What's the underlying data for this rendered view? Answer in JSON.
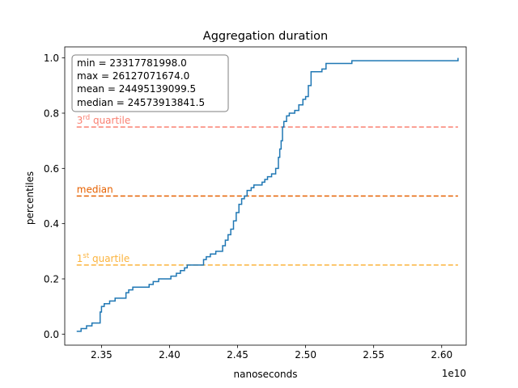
{
  "chart_data": {
    "type": "line",
    "title": "Aggregation duration",
    "xlabel": "nanoseconds",
    "ylabel": "percentiles",
    "x_offset_label": "1e10",
    "xlim": [
      23230000000,
      26180000000
    ],
    "ylim": [
      -0.04,
      1.04
    ],
    "xticks": [
      23500000000,
      24000000000,
      24500000000,
      25000000000,
      25500000000,
      26000000000
    ],
    "xtick_labels": [
      "2.35",
      "2.40",
      "2.45",
      "2.50",
      "2.55",
      "2.60"
    ],
    "yticks": [
      0.0,
      0.2,
      0.4,
      0.6,
      0.8,
      1.0
    ],
    "ytick_labels": [
      "0.0",
      "0.2",
      "0.4",
      "0.6",
      "0.8",
      "1.0"
    ],
    "grid": false,
    "series": [
      {
        "color": "#1f77b4",
        "style": "step",
        "points": [
          [
            23317781998,
            0.01
          ],
          [
            23350000000,
            0.01
          ],
          [
            23350000000,
            0.02
          ],
          [
            23390000000,
            0.02
          ],
          [
            23390000000,
            0.03
          ],
          [
            23430000000,
            0.03
          ],
          [
            23430000000,
            0.04
          ],
          [
            23490000000,
            0.04
          ],
          [
            23490000000,
            0.08
          ],
          [
            23500000000,
            0.08
          ],
          [
            23500000000,
            0.1
          ],
          [
            23520000000,
            0.1
          ],
          [
            23520000000,
            0.11
          ],
          [
            23560000000,
            0.11
          ],
          [
            23560000000,
            0.12
          ],
          [
            23600000000,
            0.12
          ],
          [
            23600000000,
            0.13
          ],
          [
            23680000000,
            0.13
          ],
          [
            23680000000,
            0.15
          ],
          [
            23700000000,
            0.15
          ],
          [
            23700000000,
            0.16
          ],
          [
            23730000000,
            0.16
          ],
          [
            23730000000,
            0.17
          ],
          [
            23850000000,
            0.17
          ],
          [
            23850000000,
            0.18
          ],
          [
            23880000000,
            0.18
          ],
          [
            23880000000,
            0.19
          ],
          [
            23920000000,
            0.19
          ],
          [
            23920000000,
            0.2
          ],
          [
            24010000000,
            0.2
          ],
          [
            24010000000,
            0.21
          ],
          [
            24050000000,
            0.21
          ],
          [
            24050000000,
            0.22
          ],
          [
            24080000000,
            0.22
          ],
          [
            24080000000,
            0.23
          ],
          [
            24110000000,
            0.23
          ],
          [
            24110000000,
            0.24
          ],
          [
            24130000000,
            0.24
          ],
          [
            24130000000,
            0.25
          ],
          [
            24250000000,
            0.25
          ],
          [
            24250000000,
            0.27
          ],
          [
            24270000000,
            0.27
          ],
          [
            24270000000,
            0.28
          ],
          [
            24300000000,
            0.28
          ],
          [
            24300000000,
            0.29
          ],
          [
            24340000000,
            0.29
          ],
          [
            24340000000,
            0.3
          ],
          [
            24390000000,
            0.3
          ],
          [
            24390000000,
            0.32
          ],
          [
            24410000000,
            0.32
          ],
          [
            24410000000,
            0.34
          ],
          [
            24430000000,
            0.34
          ],
          [
            24430000000,
            0.36
          ],
          [
            24450000000,
            0.36
          ],
          [
            24450000000,
            0.38
          ],
          [
            24470000000,
            0.38
          ],
          [
            24470000000,
            0.41
          ],
          [
            24490000000,
            0.41
          ],
          [
            24490000000,
            0.44
          ],
          [
            24510000000,
            0.44
          ],
          [
            24510000000,
            0.47
          ],
          [
            24530000000,
            0.47
          ],
          [
            24530000000,
            0.49
          ],
          [
            24550000000,
            0.49
          ],
          [
            24550000000,
            0.5
          ],
          [
            24570000000,
            0.5
          ],
          [
            24570000000,
            0.52
          ],
          [
            24600000000,
            0.52
          ],
          [
            24600000000,
            0.53
          ],
          [
            24620000000,
            0.53
          ],
          [
            24620000000,
            0.54
          ],
          [
            24680000000,
            0.54
          ],
          [
            24680000000,
            0.55
          ],
          [
            24700000000,
            0.55
          ],
          [
            24700000000,
            0.56
          ],
          [
            24720000000,
            0.56
          ],
          [
            24720000000,
            0.57
          ],
          [
            24750000000,
            0.57
          ],
          [
            24750000000,
            0.58
          ],
          [
            24780000000,
            0.58
          ],
          [
            24780000000,
            0.6
          ],
          [
            24800000000,
            0.6
          ],
          [
            24800000000,
            0.64
          ],
          [
            24810000000,
            0.64
          ],
          [
            24810000000,
            0.67
          ],
          [
            24820000000,
            0.67
          ],
          [
            24820000000,
            0.7
          ],
          [
            24830000000,
            0.7
          ],
          [
            24830000000,
            0.75
          ],
          [
            24840000000,
            0.75
          ],
          [
            24840000000,
            0.77
          ],
          [
            24860000000,
            0.77
          ],
          [
            24860000000,
            0.79
          ],
          [
            24880000000,
            0.79
          ],
          [
            24880000000,
            0.8
          ],
          [
            24920000000,
            0.8
          ],
          [
            24920000000,
            0.81
          ],
          [
            24950000000,
            0.81
          ],
          [
            24950000000,
            0.83
          ],
          [
            24980000000,
            0.83
          ],
          [
            24980000000,
            0.85
          ],
          [
            25000000000,
            0.85
          ],
          [
            25000000000,
            0.86
          ],
          [
            25020000000,
            0.86
          ],
          [
            25020000000,
            0.9
          ],
          [
            25040000000,
            0.9
          ],
          [
            25040000000,
            0.95
          ],
          [
            25120000000,
            0.95
          ],
          [
            25120000000,
            0.96
          ],
          [
            25150000000,
            0.96
          ],
          [
            25150000000,
            0.98
          ],
          [
            25340000000,
            0.98
          ],
          [
            25340000000,
            0.99
          ],
          [
            26120000000,
            0.99
          ],
          [
            26120000000,
            1.0
          ]
        ]
      }
    ],
    "reference_lines": [
      {
        "y": 0.75,
        "color": "#fa8072",
        "style": "dashed",
        "label_base": "3",
        "label_sup": "rd",
        "label_rest": " quartile"
      },
      {
        "y": 0.5,
        "color": "#e66100",
        "style": "dashed",
        "label_base": "median",
        "label_sup": "",
        "label_rest": ""
      },
      {
        "y": 0.25,
        "color": "#fbb33c",
        "style": "dashed",
        "label_base": "1",
        "label_sup": "st",
        "label_rest": " quartile"
      }
    ],
    "stats_box": {
      "placement": "top-left",
      "lines": [
        "min = 23317781998.0",
        "max = 26127071674.0",
        "mean = 24495139099.5",
        "median = 24573913841.5"
      ]
    }
  }
}
